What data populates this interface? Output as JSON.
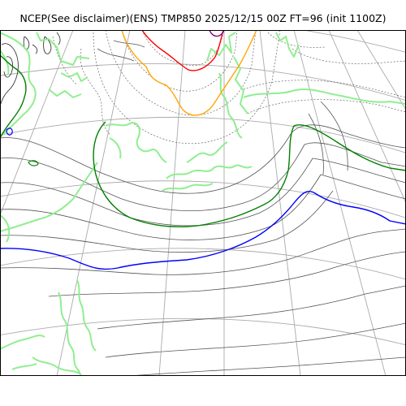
{
  "title": "NCEP(See disclaimer)(ENS) TMP850 2025/12/15 00Z FT=96 (init 1100Z)",
  "colors": {
    "background": "#ffffff",
    "frame": "#000000",
    "graticule": "#aaaaaa",
    "pressure_contours": "#555555",
    "dashed_contours": "#666666",
    "coastline": "#90ee90",
    "isotherm_green": "#008000",
    "isotherm_blue": "#0000ff",
    "isotherm_orange": "#ffa500",
    "isotherm_red": "#ff0000",
    "isotherm_purple": "#800080"
  },
  "icons": {
    "map": "weather-map-panel"
  }
}
